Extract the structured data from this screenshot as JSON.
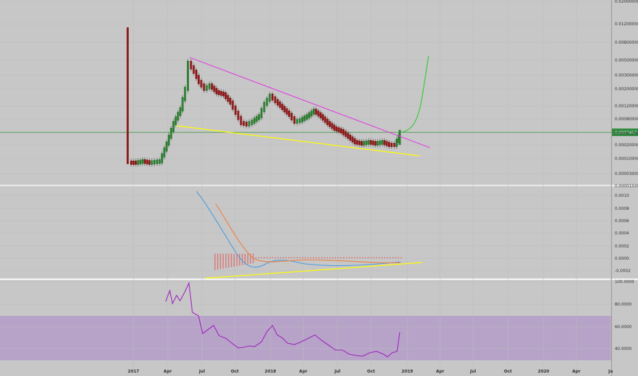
{
  "colors": {
    "background": "#c7c7c7",
    "up_candle": "#2e7d32",
    "down_candle": "#8b1a1a",
    "resistance_line": "#e040e0",
    "support_line": "#ffff00",
    "projection": "#33cc33",
    "price_line": "#3a9a3a",
    "macd": "#4a9be0",
    "signal": "#ee7d3b",
    "histogram": "#e05050",
    "rsi": "#a020c0",
    "rsi_band": "#b7a3c8"
  },
  "chart_data": [
    {
      "type": "candlestick",
      "scale": "log",
      "ylim": [
        1.5e-05,
        0.02
      ],
      "y_ticks": [
        "0.02000000",
        "0.01200000",
        "0.00800000",
        "0.00500000",
        "0.00300000",
        "0.00200000",
        "0.00120000",
        "0.00080000",
        "0.00041240",
        "0.00020000",
        "0.00010000",
        "0.00003000",
        "0.00001500"
      ],
      "current_price_label": "0.00034124",
      "x_labels": [
        "2017",
        "Apr",
        "Jul",
        "Oct",
        "2018",
        "Apr",
        "Jul",
        "Oct",
        "2019",
        "Apr",
        "Jul",
        "Oct",
        "2020",
        "Apr",
        "Ju"
      ]
    },
    {
      "type": "line",
      "name_hidden": true,
      "y_ticks": [
        "0.0010",
        "0.0008",
        "0.0006",
        "0.0004",
        "0.0002",
        "0.0000",
        "-0.0002"
      ],
      "ylim": [
        -0.0003,
        0.0011
      ]
    },
    {
      "type": "line",
      "y_ticks": [
        "100.0000",
        "80.0000",
        "60.0000",
        "40.0000"
      ],
      "ylim": [
        30,
        100
      ],
      "band": [
        30,
        70
      ]
    }
  ]
}
